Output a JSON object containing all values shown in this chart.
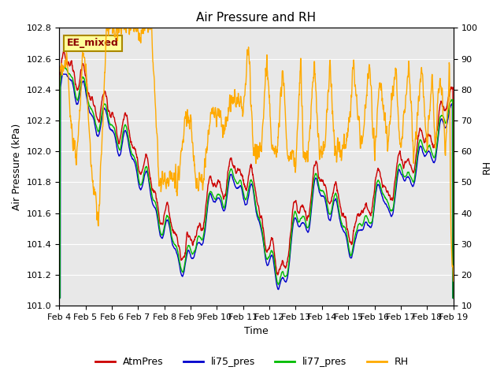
{
  "title": "Air Pressure and RH",
  "xlabel": "Time",
  "ylabel_left": "Air Pressure (kPa)",
  "ylabel_right": "RH",
  "ylim_left": [
    101.0,
    102.8
  ],
  "ylim_right": [
    10,
    100
  ],
  "yticks_left": [
    101.0,
    101.2,
    101.4,
    101.6,
    101.8,
    102.0,
    102.2,
    102.4,
    102.6,
    102.8
  ],
  "yticks_right": [
    10,
    20,
    30,
    40,
    50,
    60,
    70,
    80,
    90,
    100
  ],
  "xtick_labels": [
    "Feb 4",
    "Feb 5",
    "Feb 6",
    "Feb 7",
    "Feb 8",
    "Feb 9",
    "Feb 10",
    "Feb 11",
    "Feb 12",
    "Feb 13",
    "Feb 14",
    "Feb 15",
    "Feb 16",
    "Feb 17",
    "Feb 18",
    "Feb 19"
  ],
  "colors": {
    "AtmPres": "#cc0000",
    "li75_pres": "#0000cc",
    "li77_pres": "#00bb00",
    "RH": "#ffaa00"
  },
  "annotation_text": "EE_mixed",
  "annotation_facecolor": "#ffff99",
  "annotation_edgecolor": "#aa8800",
  "bg_color": "#e8e8e8",
  "grid_color": "#ffffff",
  "linewidth": 1.0,
  "n_points": 1500
}
